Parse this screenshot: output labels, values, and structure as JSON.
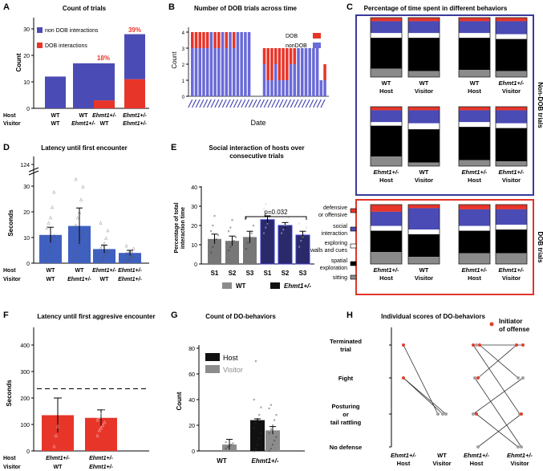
{
  "figure_title": "Multi-panel figure",
  "colors": {
    "blue": "#4B4BB5",
    "red": "#E8352A",
    "black": "#111111",
    "gray": "#8C8C8C",
    "frame_blue": "#3A3A9A",
    "frame_red": "#E0352A"
  },
  "panels": {
    "A": {
      "letter": "A",
      "title": "Count of trials",
      "ylabel": "Count",
      "legend": [
        "non DOB interactions",
        "DOB interactions"
      ],
      "host_label": "Host",
      "visitor_label": "Visitor",
      "x_hosts": [
        "WT",
        "WT",
        "Ehmt1+/-",
        "Ehmt1+/-"
      ],
      "x_visitors": [
        "WT",
        "Ehmt1+/-",
        "WT",
        "Ehmt1+/-"
      ],
      "pct": [
        "18%",
        "39%"
      ],
      "yticks": [
        "0",
        "10",
        "20",
        "30"
      ]
    },
    "B": {
      "letter": "B",
      "title": "Number of DOB trials across time",
      "ylabel": "Count",
      "xlabel": "Date",
      "legend": [
        "DOB",
        "nonDOB"
      ],
      "yticks": [
        "0",
        "1",
        "2",
        "3",
        "4"
      ]
    },
    "C": {
      "letter": "C",
      "title": "Percentage of time spent in different behaviors",
      "side_top": "Non-DOB trials",
      "side_bottom": "DOB trials",
      "labels_top": [
        [
          "WT",
          "Host"
        ],
        [
          "WT",
          "Visitor"
        ],
        [
          "WT",
          "Host"
        ],
        [
          "Ehmt1+/-",
          "Visitor"
        ],
        [
          "Ehmt1+/-",
          "Host"
        ],
        [
          "WT",
          "Visitor"
        ],
        [
          "Ehmt1+/-",
          "Host"
        ],
        [
          "Ehmt1+/-",
          "Visitor"
        ]
      ],
      "labels_bottom": [
        [
          "Ehmt1+/-",
          "Host"
        ],
        [
          "WT",
          "Visitor"
        ],
        [
          "Ehmt1+/-",
          "Host"
        ],
        [
          "Ehmt1+/-",
          "Visitor"
        ]
      ],
      "legend": [
        "defensive or offensive",
        "social interaction",
        "exploring walls and cues",
        "spatial exploration",
        "sitting"
      ]
    },
    "D": {
      "letter": "D",
      "title": "Latency until first encounter",
      "ylabel": "Seconds",
      "yticks": [
        "0",
        "10",
        "20",
        "30",
        "124"
      ],
      "host_label": "Host",
      "visitor_label": "Visitor",
      "x_hosts": [
        "WT",
        "WT",
        "Ehmt1+/-",
        "Ehmt1+/-"
      ],
      "x_visitors": [
        "WT",
        "Ehmt1+/-",
        "WT",
        "Ehmt1+/-"
      ]
    },
    "E": {
      "letter": "E",
      "title": "Social interaction of hosts over consecutive trials",
      "ylabel": "Percentage of total interaction time",
      "yticks": [
        "0",
        "10",
        "20",
        "30",
        "40"
      ],
      "xcats": [
        "S1",
        "S2",
        "S3",
        "S1",
        "S2",
        "S3"
      ],
      "pval": "p=0.032",
      "legend": [
        "WT",
        "Ehmt1+/-"
      ]
    },
    "F": {
      "letter": "F",
      "title": "Latency until first aggresive encounter",
      "ylabel": "Seconds",
      "yticks": [
        "0",
        "100",
        "200",
        "300",
        "400"
      ],
      "host_label": "Host",
      "visitor_label": "Visitor",
      "x_hosts": [
        "Ehmt1+/-",
        "Ehmt1+/-"
      ],
      "x_visitors": [
        "WT",
        "Ehmt1+/-"
      ]
    },
    "G": {
      "letter": "G",
      "title": "Count of DO-behaviors",
      "ylabel": "Count",
      "yticks": [
        "0",
        "20",
        "40",
        "60",
        "80"
      ],
      "legend": [
        "Host",
        "Visitor"
      ],
      "xcats": [
        "WT",
        "Ehmt1+/-"
      ]
    },
    "H": {
      "letter": "H",
      "title": "Individual scores of DO-behaviors",
      "ylevels": [
        "Terminated trial",
        "Fight",
        "Posturing or tail rattling",
        "No defense"
      ],
      "legend": "Initiator of offense",
      "xcats": [
        [
          "Ehmt1+/-",
          "Host"
        ],
        [
          "WT",
          "Visitor"
        ],
        [
          "Ehmt1+/-",
          "Host"
        ],
        [
          "Ehmt1+/-",
          "Visitor"
        ]
      ]
    }
  },
  "chart_data": [
    {
      "panel": "A",
      "type": "bar",
      "categories": [
        "WT/WT",
        "WT/Ehmt1+/-",
        "Ehmt1+/-/WT",
        "Ehmt1+/-/Ehmt1+/-"
      ],
      "series": [
        {
          "name": "non DOB interactions",
          "values": [
            12,
            17,
            14,
            17
          ]
        },
        {
          "name": "DOB interactions",
          "values": [
            0,
            0,
            3,
            11
          ]
        }
      ],
      "ylim": [
        0,
        30
      ]
    },
    {
      "panel": "B",
      "type": "bar",
      "n_dates": 36,
      "series": [
        {
          "name": "nonDOB",
          "values": [
            3,
            3,
            3,
            3,
            3,
            4,
            3,
            3,
            4,
            3,
            4,
            3,
            4,
            4,
            4,
            4,
            0,
            0,
            0,
            2,
            1,
            1,
            2,
            1,
            1,
            1,
            2,
            2,
            3,
            3,
            3,
            3,
            3,
            3,
            1,
            1
          ]
        },
        {
          "name": "DOB",
          "values": [
            1,
            1,
            1,
            1,
            1,
            0,
            1,
            1,
            0,
            1,
            0,
            1,
            0,
            0,
            0,
            0,
            0,
            0,
            0,
            1,
            2,
            2,
            1,
            2,
            2,
            2,
            1,
            1,
            0,
            0,
            0,
            0,
            0,
            0,
            0,
            1
          ]
        }
      ],
      "ylim": [
        0,
        4
      ]
    },
    {
      "panel": "C",
      "type": "bar",
      "stacked_percent": [
        [
          6,
          20,
          8,
          52,
          14
        ],
        [
          6,
          20,
          8,
          56,
          10
        ],
        [
          6,
          20,
          8,
          54,
          12
        ],
        [
          6,
          22,
          8,
          54,
          10
        ],
        [
          6,
          20,
          6,
          52,
          16
        ],
        [
          6,
          22,
          10,
          56,
          6
        ],
        [
          6,
          20,
          8,
          56,
          10
        ],
        [
          6,
          22,
          8,
          56,
          8
        ],
        [
          12,
          24,
          8,
          36,
          20
        ],
        [
          6,
          36,
          8,
          38,
          12
        ],
        [
          8,
          28,
          8,
          38,
          18
        ],
        [
          8,
          26,
          8,
          40,
          18
        ]
      ]
    },
    {
      "panel": "D",
      "type": "bar",
      "categories": [
        "WT/WT",
        "WT/Ehmt1+/-",
        "Ehmt1+/-/WT",
        "Ehmt1+/-/Ehmt1+/-"
      ],
      "values": [
        11,
        14.5,
        5.5,
        4
      ],
      "errors": [
        3,
        7,
        1.5,
        1
      ],
      "ylim": [
        0,
        35
      ]
    },
    {
      "panel": "E",
      "type": "bar",
      "categories": [
        "S1",
        "S2",
        "S3",
        "S1",
        "S2",
        "S3"
      ],
      "groups": [
        "WT",
        "WT",
        "WT",
        "Ehmt1+/-",
        "Ehmt1+/-",
        "Ehmt1+/-"
      ],
      "values": [
        13,
        12,
        14,
        23,
        20,
        15
      ],
      "errors": [
        2.5,
        2.5,
        3,
        2,
        1.5,
        2
      ],
      "ylim": [
        0,
        40
      ]
    },
    {
      "panel": "F",
      "type": "bar",
      "categories": [
        "Ehmt1+/-/WT",
        "Ehmt1+/-/Ehmt1+/-"
      ],
      "values": [
        135,
        125
      ],
      "errors": [
        65,
        30
      ],
      "threshold": 235,
      "ylim": [
        0,
        450
      ]
    },
    {
      "panel": "G",
      "type": "bar",
      "categories": [
        "WT",
        "Ehmt1+/-"
      ],
      "series": [
        {
          "name": "Host",
          "values": [
            0,
            24
          ]
        },
        {
          "name": "Visitor",
          "values": [
            5,
            16
          ]
        }
      ],
      "errors": [
        [
          0,
          4
        ],
        [
          1,
          3
        ]
      ],
      "ylim": [
        0,
        80
      ]
    },
    {
      "panel": "H",
      "type": "scatter",
      "levels": [
        "No defense",
        "Posturing or tail rattling",
        "Fight",
        "Terminated trial"
      ]
    }
  ]
}
